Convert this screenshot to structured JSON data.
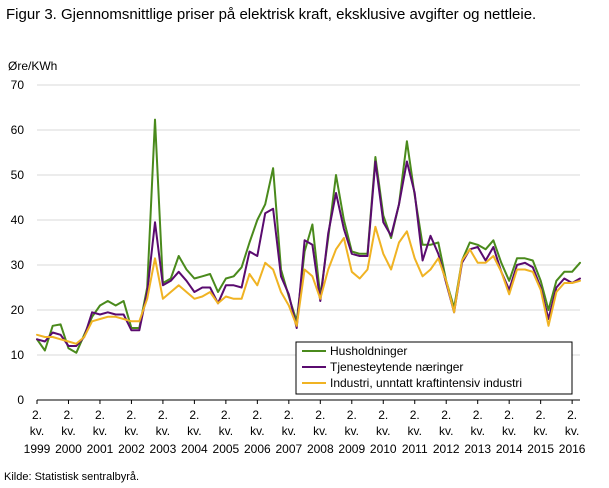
{
  "title": "Figur 3. Gjennomsnittlige priser på elektrisk kraft, eksklusive avgifter og nettleie.",
  "source": "Kilde: Statistisk sentralbyrå.",
  "chart_data": {
    "type": "line",
    "ylabel": "Øre/KWh",
    "ylim": [
      0,
      70
    ],
    "yticks": [
      0,
      10,
      20,
      30,
      40,
      50,
      60,
      70
    ],
    "grid": "horizontal",
    "legend_position": "bottom-right",
    "x_ticks": [
      {
        "top": "2.",
        "mid": "kv.",
        "year": "1999"
      },
      {
        "top": "2.",
        "mid": "kv.",
        "year": "2000"
      },
      {
        "top": "2.",
        "mid": "kv.",
        "year": "2001"
      },
      {
        "top": "2.",
        "mid": "kv.",
        "year": "2002"
      },
      {
        "top": "2.",
        "mid": "kv.",
        "year": "2003"
      },
      {
        "top": "2.",
        "mid": "kv.",
        "year": "2004"
      },
      {
        "top": "2.",
        "mid": "kv.",
        "year": "2005"
      },
      {
        "top": "2.",
        "mid": "kv.",
        "year": "2006"
      },
      {
        "top": "2.",
        "mid": "kv.",
        "year": "2007"
      },
      {
        "top": "2.",
        "mid": "kv.",
        "year": "2008"
      },
      {
        "top": "2.",
        "mid": "kv.",
        "year": "2009"
      },
      {
        "top": "2.",
        "mid": "kv.",
        "year": "2010"
      },
      {
        "top": "2.",
        "mid": "kv.",
        "year": "2011"
      },
      {
        "top": "2.",
        "mid": "kv.",
        "year": "2012"
      },
      {
        "top": "2.",
        "mid": "kv.",
        "year": "2013"
      },
      {
        "top": "2.",
        "mid": "kv.",
        "year": "2014"
      },
      {
        "top": "2.",
        "mid": "kv.",
        "year": "2015"
      },
      {
        "top": "2.",
        "mid": "kv.",
        "year": "2016"
      }
    ],
    "series": [
      {
        "name": "Husholdninger",
        "color": "#4a8a1c",
        "values": [
          13.5,
          11.0,
          16.5,
          16.8,
          11.5,
          10.5,
          14.5,
          18.5,
          21.0,
          22.0,
          21.0,
          22.0,
          16.0,
          16.0,
          25.0,
          62.3,
          26.0,
          27.0,
          32.0,
          29.0,
          27.0,
          27.5,
          28.0,
          24.0,
          27.0,
          27.5,
          29.5,
          35.0,
          40.0,
          43.5,
          51.5,
          29.0,
          23.0,
          17.5,
          33.0,
          39.0,
          23.0,
          36.0,
          50.0,
          40.0,
          33.0,
          32.5,
          32.5,
          54.0,
          41.0,
          36.0,
          43.5,
          57.5,
          45.5,
          34.5,
          34.5,
          35.0,
          26.5,
          20.5,
          31.0,
          35.0,
          34.5,
          33.5,
          35.5,
          30.5,
          26.5,
          31.5,
          31.5,
          31.0,
          26.5,
          20.0,
          26.5,
          28.5,
          28.5,
          30.5
        ]
      },
      {
        "name": "Tjenesteytende næringer",
        "color": "#5a0b6f",
        "values": [
          13.5,
          13.0,
          15.0,
          14.5,
          12.0,
          12.0,
          14.0,
          19.5,
          19.0,
          19.5,
          19.0,
          19.0,
          15.5,
          15.5,
          24.0,
          39.5,
          25.5,
          26.5,
          28.5,
          26.5,
          24.0,
          25.0,
          25.0,
          21.5,
          25.5,
          25.5,
          25.0,
          33.0,
          32.0,
          41.5,
          42.5,
          27.5,
          23.5,
          16.0,
          35.5,
          34.5,
          22.0,
          37.0,
          46.0,
          38.0,
          32.5,
          32.0,
          32.0,
          53.0,
          39.5,
          36.5,
          43.5,
          53.0,
          46.0,
          31.0,
          36.5,
          32.5,
          26.0,
          19.5,
          30.5,
          33.5,
          34.0,
          31.0,
          34.0,
          28.5,
          24.5,
          30.0,
          30.5,
          29.5,
          25.0,
          18.0,
          25.0,
          27.0,
          26.0,
          27.0
        ]
      },
      {
        "name": "Industri, unntatt kraftintensiv industri",
        "color": "#f0b323",
        "values": [
          14.5,
          14.0,
          14.0,
          13.5,
          13.0,
          12.5,
          14.0,
          17.5,
          18.0,
          18.5,
          18.5,
          18.0,
          17.5,
          17.5,
          22.5,
          31.5,
          22.5,
          24.0,
          25.5,
          24.0,
          22.5,
          23.0,
          24.0,
          21.5,
          23.0,
          22.5,
          22.5,
          28.0,
          25.5,
          30.5,
          29.0,
          24.0,
          21.0,
          16.5,
          29.0,
          27.5,
          22.5,
          29.0,
          33.5,
          36.0,
          28.5,
          27.0,
          29.0,
          38.5,
          32.5,
          29.0,
          35.0,
          37.5,
          31.5,
          27.5,
          29.0,
          31.5,
          26.5,
          19.5,
          31.0,
          33.5,
          30.5,
          30.5,
          32.0,
          28.5,
          23.5,
          29.0,
          29.0,
          28.5,
          24.5,
          16.5,
          24.0,
          26.0,
          26.0,
          26.5
        ]
      }
    ]
  }
}
